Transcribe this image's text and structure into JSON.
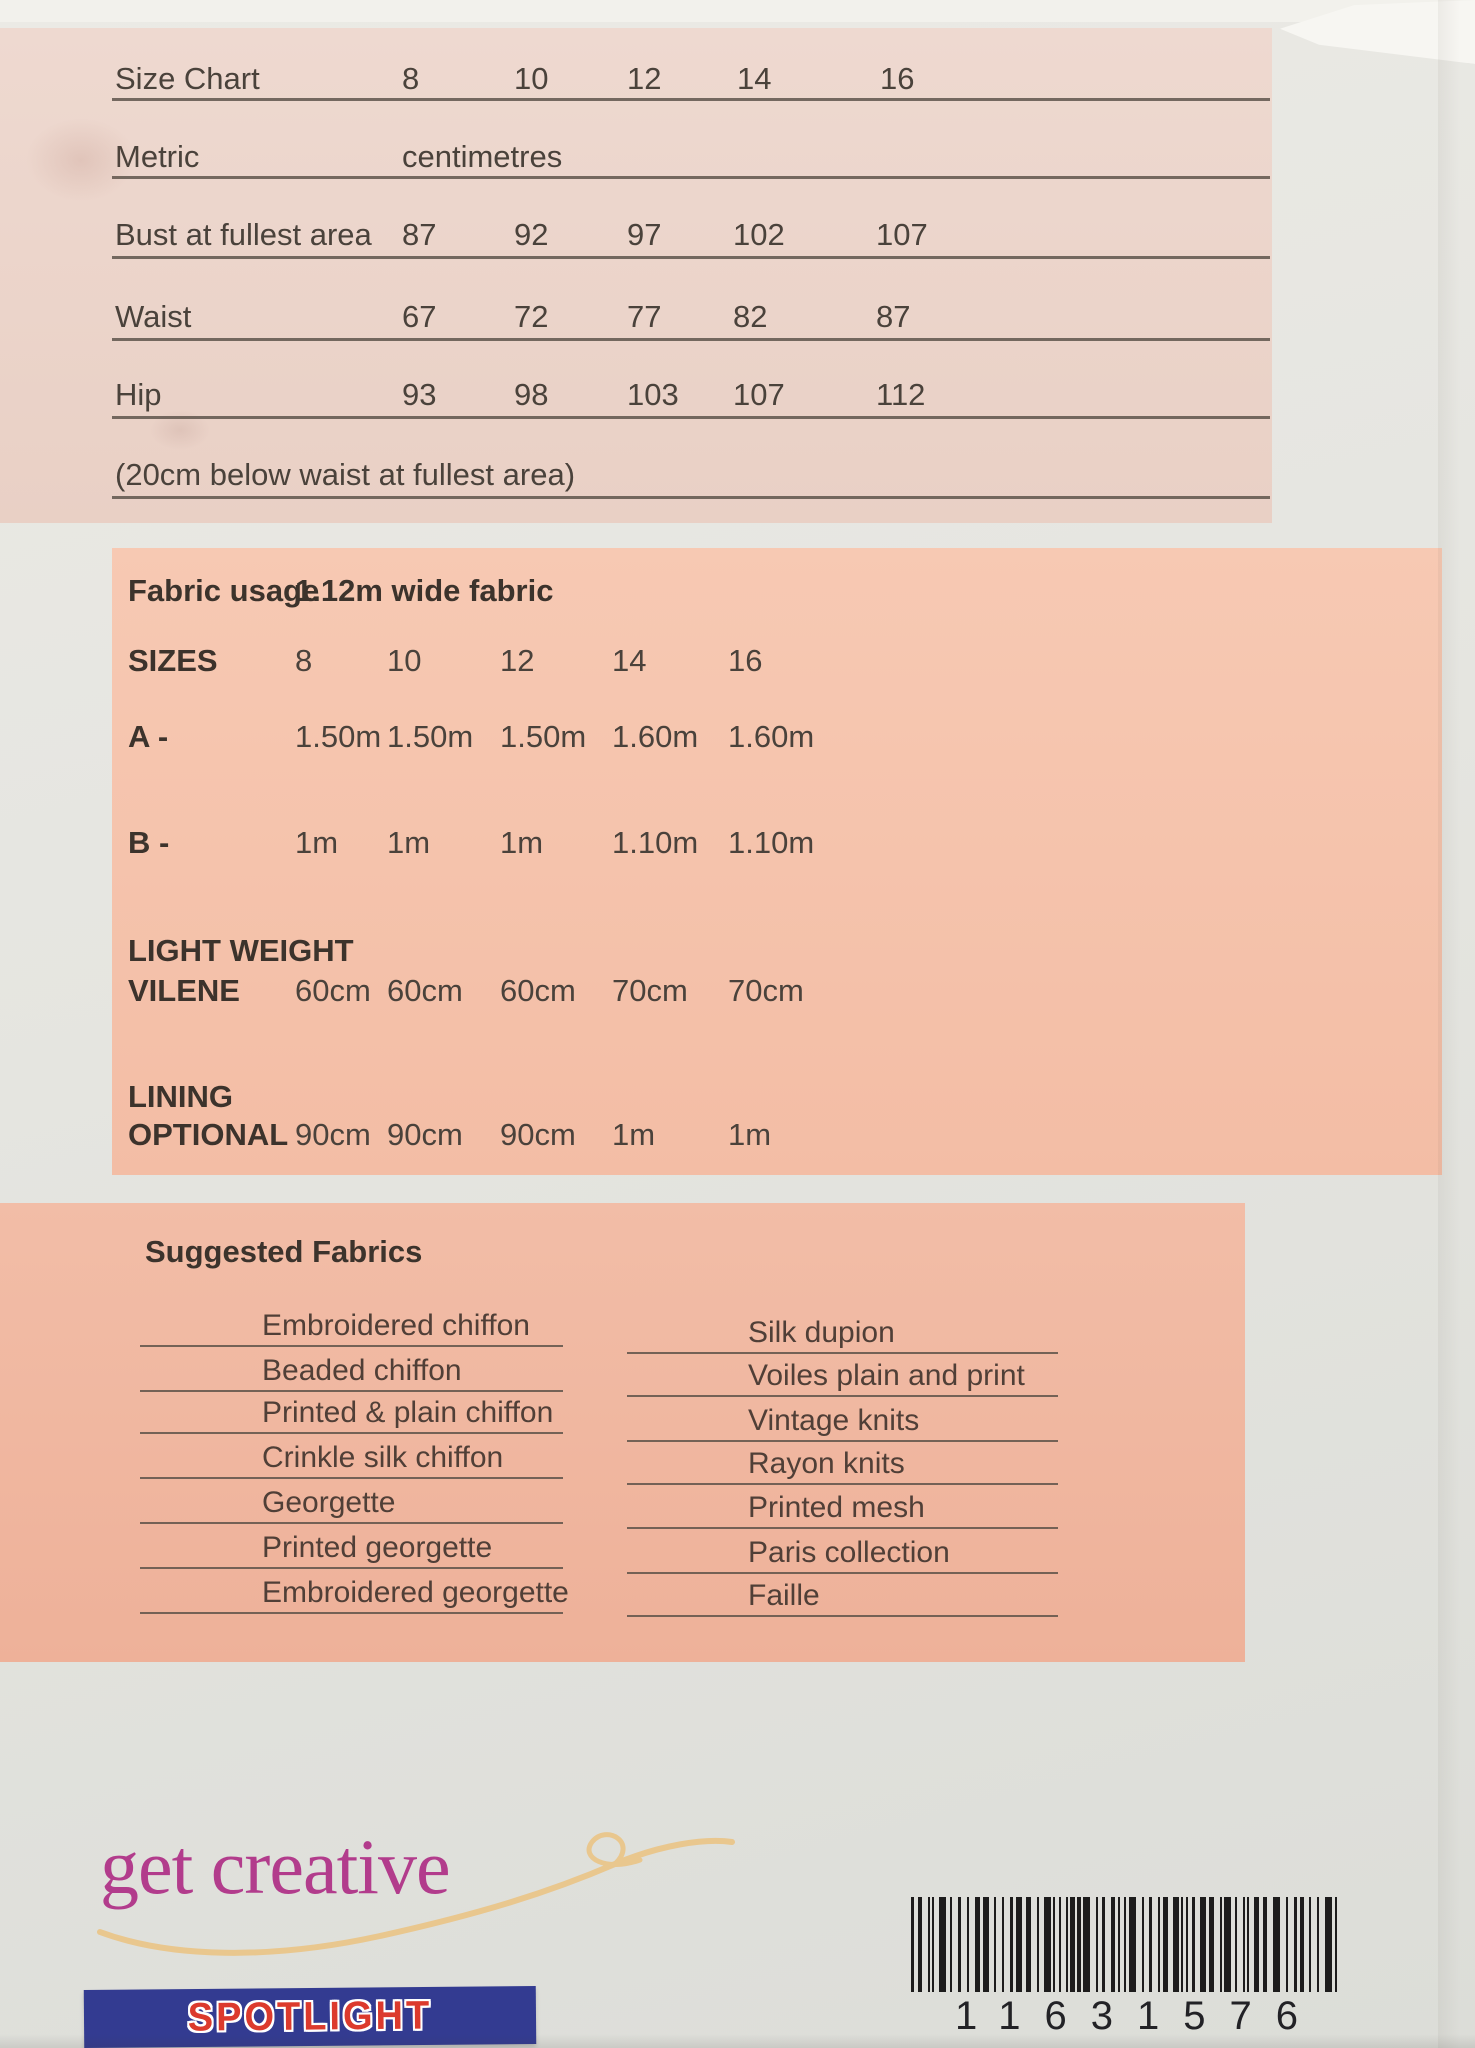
{
  "size_chart": {
    "title": "Size Chart",
    "sizes": [
      "8",
      "10",
      "12",
      "14",
      "16"
    ],
    "metric": {
      "label": "Metric",
      "value": "centimetres"
    },
    "rows": [
      {
        "label": "Bust at fullest area",
        "values": [
          "87",
          "92",
          "97",
          "102",
          "107"
        ]
      },
      {
        "label": "Waist",
        "values": [
          "67",
          "72",
          "77",
          "82",
          "87"
        ]
      },
      {
        "label": "Hip",
        "values": [
          "93",
          "98",
          "103",
          "107",
          "112"
        ]
      }
    ],
    "note": "(20cm below waist at fullest area)"
  },
  "fabric_usage": {
    "title": "Fabric usage",
    "fabric_width": "1.12m wide fabric",
    "sizes_label": "SIZES",
    "sizes": [
      "8",
      "10",
      "12",
      "14",
      "16"
    ],
    "rows": [
      {
        "label_line1": "A -",
        "label_line2": "",
        "values": [
          "1.50m",
          "1.50m",
          "1.50m",
          "1.60m",
          "1.60m"
        ]
      },
      {
        "label_line1": "B -",
        "label_line2": "",
        "values": [
          "1m",
          "1m",
          "1m",
          "1.10m",
          "1.10m"
        ]
      },
      {
        "label_line1": "LIGHT WEIGHT",
        "label_line2": "VILENE",
        "values": [
          "60cm",
          "60cm",
          "60cm",
          "70cm",
          "70cm"
        ]
      },
      {
        "label_line1": "LINING",
        "label_line2": "OPTIONAL",
        "values": [
          "90cm",
          "90cm",
          "90cm",
          "1m",
          "1m"
        ]
      }
    ]
  },
  "suggested_fabrics": {
    "title": "Suggested Fabrics",
    "left_column": [
      "Embroidered chiffon",
      "Beaded chiffon",
      "Printed & plain chiffon",
      "Crinkle silk chiffon",
      "Georgette",
      "Printed georgette",
      "Embroidered georgette"
    ],
    "right_column": [
      "Silk dupion",
      "Voiles plain and print",
      "Vintage knits",
      "Rayon knits",
      "Printed mesh",
      "Paris collection",
      "Faille"
    ]
  },
  "footer": {
    "tagline": "get creative",
    "brand": "SPOTLIGHT",
    "barcode_number": "11631576"
  },
  "colors": {
    "size_chart_panel": "#ecd5cb",
    "fabric_usage_panel": "#f5c4ae",
    "suggested_fabrics_panel": "#f0b69f",
    "tagline_magenta": "#b23c8c",
    "swoosh_gold": "#e9c78e",
    "brand_blue": "#333b91",
    "brand_red": "#dc3a2d",
    "barcode_black": "#1d1c1c",
    "text_brown": "#4a423b"
  }
}
